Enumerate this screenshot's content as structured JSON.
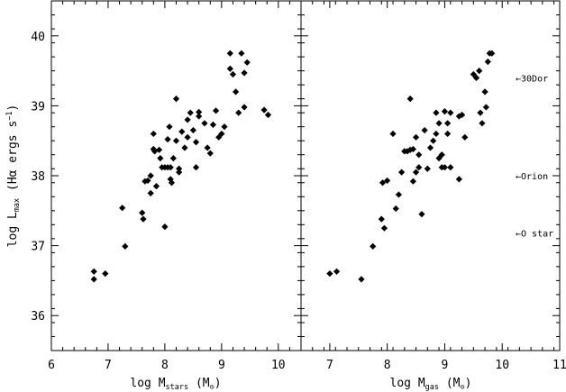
{
  "chart_data": [
    {
      "type": "scatter",
      "xlabel_main": "log M",
      "xlabel_sub": "stars",
      "xlabel_unit": " (M",
      "xlabel_close": ")",
      "ylabel_main": "log L",
      "ylabel_sub": "max",
      "ylabel_rest": " (Hα ergs s",
      "ylabel_sup": "−1",
      "ylabel_close": ")",
      "xlim": [
        6,
        10.4
      ],
      "ylim": [
        35.5,
        40.5
      ],
      "xticks": [
        6,
        7,
        8,
        9,
        10
      ],
      "yticks": [
        36,
        37,
        38,
        39,
        40
      ],
      "x": [
        6.75,
        6.75,
        6.95,
        7.25,
        7.3,
        7.6,
        7.62,
        7.65,
        7.7,
        7.75,
        7.75,
        7.8,
        7.8,
        7.82,
        7.85,
        7.9,
        7.92,
        7.95,
        8.0,
        8.0,
        8.05,
        8.05,
        8.08,
        8.1,
        8.1,
        8.12,
        8.15,
        8.2,
        8.2,
        8.25,
        8.25,
        8.3,
        8.35,
        8.4,
        8.4,
        8.45,
        8.5,
        8.55,
        8.55,
        8.6,
        8.6,
        8.7,
        8.75,
        8.8,
        8.85,
        8.9,
        8.95,
        9.0,
        9.05,
        9.15,
        9.15,
        9.2,
        9.25,
        9.3,
        9.35,
        9.4,
        9.4,
        9.45,
        9.75,
        9.82
      ],
      "y": [
        36.52,
        36.63,
        36.6,
        37.54,
        36.99,
        37.47,
        37.38,
        37.92,
        37.93,
        38.0,
        37.75,
        38.6,
        38.38,
        38.35,
        37.85,
        38.37,
        38.25,
        38.12,
        38.12,
        37.27,
        38.52,
        38.12,
        38.7,
        38.12,
        37.95,
        37.9,
        38.25,
        39.1,
        38.5,
        38.05,
        38.1,
        38.63,
        38.4,
        38.55,
        38.8,
        38.9,
        38.65,
        38.48,
        38.12,
        38.85,
        38.91,
        38.75,
        38.4,
        38.32,
        38.73,
        38.93,
        38.55,
        38.6,
        38.7,
        39.75,
        39.53,
        39.45,
        39.2,
        38.9,
        39.75,
        38.98,
        39.47,
        39.62,
        38.94,
        38.87
      ]
    },
    {
      "type": "scatter",
      "xlabel_main": "log M",
      "xlabel_sub": "gas",
      "xlabel_unit": " (M",
      "xlabel_close": ")",
      "xlim": [
        6.5,
        11
      ],
      "ylim": [
        35.5,
        40.5
      ],
      "xticks": [
        7,
        8,
        9,
        10,
        11
      ],
      "x": [
        7.0,
        7.12,
        7.55,
        7.75,
        7.9,
        7.92,
        7.95,
        8.0,
        8.1,
        8.15,
        8.2,
        8.25,
        8.3,
        8.35,
        8.4,
        8.4,
        8.45,
        8.45,
        8.5,
        8.5,
        8.55,
        8.55,
        8.6,
        8.65,
        8.7,
        8.75,
        8.8,
        8.85,
        8.85,
        8.9,
        8.9,
        8.95,
        8.95,
        9.0,
        9.0,
        9.05,
        9.05,
        9.1,
        9.1,
        9.25,
        9.25,
        9.3,
        9.35,
        9.5,
        9.55,
        9.6,
        9.62,
        9.65,
        9.7,
        9.72,
        9.75,
        9.78,
        9.82
      ],
      "y": [
        36.6,
        36.63,
        36.52,
        36.99,
        37.38,
        37.9,
        37.25,
        37.93,
        38.6,
        37.53,
        37.73,
        38.05,
        38.35,
        38.35,
        39.1,
        38.37,
        38.38,
        37.92,
        38.55,
        38.05,
        38.3,
        38.12,
        37.45,
        38.65,
        38.1,
        38.4,
        38.5,
        38.9,
        38.6,
        38.75,
        38.25,
        38.12,
        38.3,
        38.92,
        38.12,
        38.75,
        38.6,
        38.9,
        38.12,
        38.85,
        37.95,
        38.87,
        38.55,
        39.45,
        39.4,
        39.5,
        38.9,
        38.75,
        39.2,
        38.98,
        39.63,
        39.75,
        39.75
      ]
    }
  ],
  "annotations": [
    {
      "text": "←30Dor",
      "y": 39.4
    },
    {
      "text": "←Orion",
      "y": 38.0
    },
    {
      "text": "←O star",
      "y": 37.18
    }
  ],
  "colors": {
    "points": "#000000",
    "axes": "#000000",
    "background": "#ffffff"
  }
}
